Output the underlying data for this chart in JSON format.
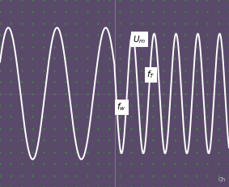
{
  "background_color": "#5a4a6a",
  "grid_color": "#3a8a3a",
  "wave_color": "#ffffff",
  "grid_dots_nx": 22,
  "grid_dots_ny": 17,
  "label_Um": "$U_m$",
  "label_fT": "$f_T$",
  "label_fw": "$f_w$",
  "label_ch": "Ch",
  "figsize": [
    2.83,
    2.31
  ],
  "dpi": 100,
  "xlim": [
    0,
    10
  ],
  "ylim": [
    -1.25,
    1.25
  ],
  "vline_x": 5.0,
  "phase1_freq": 0.47,
  "phase1_amp": 0.88,
  "phase2_freq": 1.05,
  "phase2_amp": 0.8,
  "noise_amp": 0.04
}
